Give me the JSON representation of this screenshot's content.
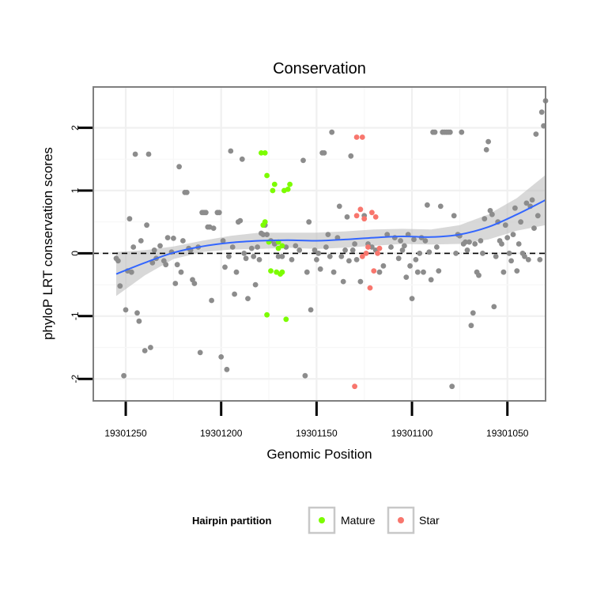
{
  "chart_data": {
    "type": "scatter",
    "title": "Conservation",
    "xlabel": "Genomic Position",
    "ylabel": "phyloP LRT conservation scores",
    "x_reversed": true,
    "xlim": [
      19301267,
      19301030
    ],
    "ylim": [
      -2.35,
      2.65
    ],
    "x_ticks": [
      19301250,
      19301200,
      19301150,
      19301100,
      19301050
    ],
    "x_tick_labels": [
      "19301250",
      "19301200",
      "19301150",
      "19301100",
      "19301050"
    ],
    "y_ticks": [
      -2,
      -1,
      0,
      1,
      2
    ],
    "y_tick_labels": [
      "-2",
      "-1",
      "0",
      "1",
      "2"
    ],
    "grid": true,
    "reference_line": {
      "y": 0,
      "style": "dashed"
    },
    "legend": {
      "title": "Hairpin partition",
      "position": "bottom",
      "entries": [
        {
          "label": "Mature",
          "color": "#7cfc00"
        },
        {
          "label": "Star",
          "color": "#f8766d"
        }
      ]
    },
    "colors": {
      "other": "#8c8c8c",
      "Mature": "#7cfc00",
      "Star": "#f8766d",
      "smooth": "#3366ff",
      "band": "#bebebe"
    },
    "series": [
      {
        "name": "",
        "color": "#8c8c8c",
        "points": [
          [
            19301255,
            -0.08
          ],
          [
            19301254,
            -0.12
          ],
          [
            19301253,
            -0.52
          ],
          [
            19301251,
            -1.95
          ],
          [
            19301250,
            -0.9
          ],
          [
            19301249,
            -0.28
          ],
          [
            19301248,
            0.55
          ],
          [
            19301247,
            -0.3
          ],
          [
            19301246,
            0.1
          ],
          [
            19301245,
            1.58
          ],
          [
            19301244,
            -0.95
          ],
          [
            19301243,
            -1.08
          ],
          [
            19301242,
            0.2
          ],
          [
            19301240,
            -1.55
          ],
          [
            19301239,
            0.45
          ],
          [
            19301238,
            1.58
          ],
          [
            19301237,
            -1.5
          ],
          [
            19301236,
            -0.15
          ],
          [
            19301235,
            0.05
          ],
          [
            19301234,
            -0.08
          ],
          [
            19301232,
            0.12
          ],
          [
            19301230,
            -0.12
          ],
          [
            19301229,
            -0.18
          ],
          [
            19301228,
            0.25
          ],
          [
            19301226,
            0.02
          ],
          [
            19301225,
            0.24
          ],
          [
            19301224,
            -0.48
          ],
          [
            19301223,
            -0.18
          ],
          [
            19301222,
            1.38
          ],
          [
            19301221,
            -0.3
          ],
          [
            19301220,
            0.2
          ],
          [
            19301219,
            0.97
          ],
          [
            19301218,
            0.97
          ],
          [
            19301217,
            0.08
          ],
          [
            19301216,
            0.05
          ],
          [
            19301215,
            -0.42
          ],
          [
            19301214,
            -0.48
          ],
          [
            19301212,
            0.1
          ],
          [
            19301211,
            -1.58
          ],
          [
            19301210,
            0.65
          ],
          [
            19301209,
            0.65
          ],
          [
            19301208,
            0.65
          ],
          [
            19301207,
            0.42
          ],
          [
            19301206,
            0.42
          ],
          [
            19301205,
            -0.75
          ],
          [
            19301204,
            0.4
          ],
          [
            19301202,
            0.65
          ],
          [
            19301201,
            0.65
          ],
          [
            19301200,
            -1.65
          ],
          [
            19301199,
            0.2
          ],
          [
            19301198,
            -0.22
          ],
          [
            19301197,
            -1.85
          ],
          [
            19301196,
            -0.05
          ],
          [
            19301195,
            1.63
          ],
          [
            19301194,
            0.1
          ],
          [
            19301193,
            -0.65
          ],
          [
            19301192,
            -0.3
          ],
          [
            19301191,
            0.5
          ],
          [
            19301190,
            0.52
          ],
          [
            19301189,
            1.5
          ],
          [
            19301188,
            0.0
          ],
          [
            19301187,
            -0.08
          ],
          [
            19301186,
            -0.72
          ],
          [
            19301184,
            0.08
          ],
          [
            19301183,
            -0.05
          ],
          [
            19301182,
            -0.5
          ],
          [
            19301181,
            0.1
          ],
          [
            19301180,
            -0.1
          ],
          [
            19301179,
            0.32
          ],
          [
            19301178,
            0.3
          ],
          [
            19301177,
            0.45
          ],
          [
            19301176,
            0.3
          ],
          [
            19301174,
            0.2
          ],
          [
            19301172,
            0.15
          ],
          [
            19301170,
            -0.05
          ],
          [
            19301168,
            -0.05
          ],
          [
            19301166,
            0.1
          ],
          [
            19301163,
            -0.1
          ],
          [
            19301161,
            0.12
          ],
          [
            19301159,
            0.05
          ],
          [
            19301157,
            1.48
          ],
          [
            19301156,
            -1.95
          ],
          [
            19301155,
            -0.3
          ],
          [
            19301154,
            0.5
          ],
          [
            19301153,
            -0.9
          ],
          [
            19301151,
            0.05
          ],
          [
            19301150,
            -0.1
          ],
          [
            19301149,
            0.0
          ],
          [
            19301148,
            -0.25
          ],
          [
            19301147,
            1.6
          ],
          [
            19301146,
            1.6
          ],
          [
            19301145,
            0.1
          ],
          [
            19301144,
            0.3
          ],
          [
            19301143,
            -0.05
          ],
          [
            19301142,
            1.93
          ],
          [
            19301141,
            -0.3
          ],
          [
            19301139,
            0.25
          ],
          [
            19301138,
            0.75
          ],
          [
            19301137,
            -0.05
          ],
          [
            19301136,
            -0.45
          ],
          [
            19301135,
            0.05
          ],
          [
            19301134,
            0.58
          ],
          [
            19301133,
            -0.12
          ],
          [
            19301132,
            1.55
          ],
          [
            19301131,
            0.05
          ],
          [
            19301130,
            0.15
          ],
          [
            19301129,
            -0.1
          ],
          [
            19301127,
            -0.45
          ],
          [
            19301125,
            0.6
          ],
          [
            19301123,
            0.15
          ],
          [
            19301121,
            0.1
          ],
          [
            19301119,
            0.05
          ],
          [
            19301117,
            -0.3
          ],
          [
            19301115,
            -0.2
          ],
          [
            19301113,
            0.3
          ],
          [
            19301111,
            0.1
          ],
          [
            19301109,
            0.25
          ],
          [
            19301107,
            -0.08
          ],
          [
            19301106,
            0.2
          ],
          [
            19301105,
            0.05
          ],
          [
            19301104,
            0.12
          ],
          [
            19301103,
            -0.38
          ],
          [
            19301102,
            0.3
          ],
          [
            19301101,
            -0.2
          ],
          [
            19301100,
            -0.72
          ],
          [
            19301099,
            0.22
          ],
          [
            19301098,
            -0.1
          ],
          [
            19301097,
            -0.3
          ],
          [
            19301096,
            0.0
          ],
          [
            19301095,
            0.25
          ],
          [
            19301094,
            -0.3
          ],
          [
            19301093,
            0.2
          ],
          [
            19301092,
            0.77
          ],
          [
            19301091,
            0.02
          ],
          [
            19301090,
            -0.42
          ],
          [
            19301089,
            1.93
          ],
          [
            19301088,
            1.93
          ],
          [
            19301087,
            0.1
          ],
          [
            19301086,
            -0.28
          ],
          [
            19301085,
            0.75
          ],
          [
            19301084,
            1.93
          ],
          [
            19301083,
            1.93
          ],
          [
            19301082,
            1.93
          ],
          [
            19301081,
            1.93
          ],
          [
            19301080,
            1.93
          ],
          [
            19301079,
            -2.12
          ],
          [
            19301078,
            0.6
          ],
          [
            19301077,
            0.0
          ],
          [
            19301076,
            0.3
          ],
          [
            19301075,
            0.28
          ],
          [
            19301074,
            1.93
          ],
          [
            19301073,
            0.15
          ],
          [
            19301072,
            0.18
          ],
          [
            19301071,
            0.05
          ],
          [
            19301070,
            0.18
          ],
          [
            19301069,
            -1.15
          ],
          [
            19301068,
            -0.95
          ],
          [
            19301067,
            0.15
          ],
          [
            19301066,
            -0.3
          ],
          [
            19301065,
            -0.35
          ],
          [
            19301064,
            0.2
          ],
          [
            19301063,
            0.0
          ],
          [
            19301062,
            0.55
          ],
          [
            19301061,
            1.65
          ],
          [
            19301060,
            1.78
          ],
          [
            19301059,
            0.68
          ],
          [
            19301058,
            0.62
          ],
          [
            19301057,
            -0.85
          ],
          [
            19301056,
            -0.05
          ],
          [
            19301055,
            0.5
          ],
          [
            19301054,
            0.2
          ],
          [
            19301053,
            0.15
          ],
          [
            19301052,
            -0.3
          ],
          [
            19301051,
            0.45
          ],
          [
            19301050,
            0.25
          ],
          [
            19301049,
            0.0
          ],
          [
            19301048,
            -0.12
          ],
          [
            19301047,
            0.3
          ],
          [
            19301046,
            0.72
          ],
          [
            19301045,
            -0.28
          ],
          [
            19301044,
            0.15
          ],
          [
            19301043,
            0.5
          ],
          [
            19301042,
            0.0
          ],
          [
            19301041,
            -0.05
          ],
          [
            19301040,
            0.8
          ],
          [
            19301039,
            -0.1
          ],
          [
            19301038,
            0.75
          ],
          [
            19301037,
            0.85
          ],
          [
            19301036,
            0.4
          ],
          [
            19301035,
            1.9
          ],
          [
            19301034,
            0.6
          ],
          [
            19301033,
            -0.1
          ],
          [
            19301032,
            2.25
          ],
          [
            19301031,
            2.03
          ],
          [
            19301030,
            2.43
          ]
        ]
      },
      {
        "name": "Mature",
        "color": "#7cfc00",
        "points": [
          [
            19301179,
            1.6
          ],
          [
            19301177,
            1.6
          ],
          [
            19301178,
            0.45
          ],
          [
            19301177,
            0.5
          ],
          [
            19301176,
            1.24
          ],
          [
            19301175,
            0.18
          ],
          [
            19301174,
            -0.28
          ],
          [
            19301173,
            1.0
          ],
          [
            19301172,
            1.1
          ],
          [
            19301171,
            -0.3
          ],
          [
            19301170,
            0.18
          ],
          [
            19301169,
            -0.33
          ],
          [
            19301168,
            0.12
          ],
          [
            19301167,
            1.0
          ],
          [
            19301165,
            1.02
          ],
          [
            19301164,
            1.1
          ],
          [
            19301166,
            -1.05
          ],
          [
            19301176,
            -0.98
          ],
          [
            19301170,
            0.08
          ],
          [
            19301168,
            -0.3
          ]
        ]
      },
      {
        "name": "Star",
        "color": "#f8766d",
        "points": [
          [
            19301129,
            1.85
          ],
          [
            19301126,
            1.85
          ],
          [
            19301129,
            0.6
          ],
          [
            19301127,
            0.7
          ],
          [
            19301126,
            -0.05
          ],
          [
            19301125,
            0.55
          ],
          [
            19301124,
            0.0
          ],
          [
            19301123,
            0.1
          ],
          [
            19301122,
            -0.55
          ],
          [
            19301121,
            0.65
          ],
          [
            19301120,
            -0.28
          ],
          [
            19301119,
            0.58
          ],
          [
            19301118,
            0.0
          ],
          [
            19301117,
            0.08
          ],
          [
            19301130,
            -2.12
          ]
        ]
      }
    ],
    "smooth": {
      "method": "loess",
      "x": [
        19301255,
        19301240,
        19301225,
        19301210,
        19301195,
        19301180,
        19301165,
        19301150,
        19301135,
        19301120,
        19301105,
        19301090,
        19301075,
        19301060,
        19301045,
        19301030
      ],
      "y": [
        -0.33,
        -0.15,
        0.01,
        0.11,
        0.17,
        0.2,
        0.21,
        0.2,
        0.22,
        0.25,
        0.27,
        0.26,
        0.3,
        0.42,
        0.62,
        0.85
      ],
      "lower": [
        -0.68,
        -0.35,
        -0.09,
        0.02,
        0.06,
        0.07,
        0.09,
        0.07,
        0.09,
        0.12,
        0.15,
        0.14,
        0.15,
        0.22,
        0.36,
        0.45
      ],
      "upper": [
        0.02,
        0.05,
        0.11,
        0.2,
        0.28,
        0.33,
        0.33,
        0.33,
        0.35,
        0.38,
        0.39,
        0.38,
        0.45,
        0.62,
        0.88,
        1.25
      ]
    }
  }
}
